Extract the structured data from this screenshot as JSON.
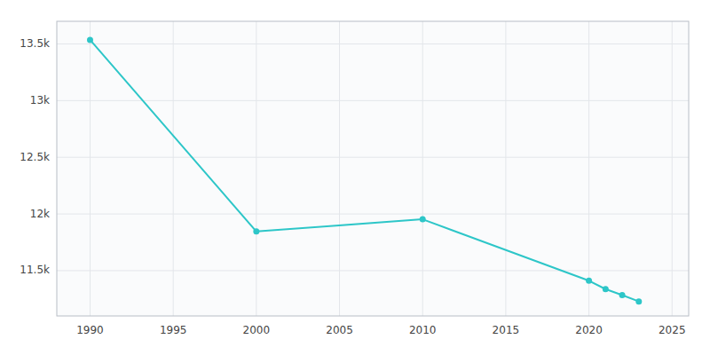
{
  "chart_data": {
    "type": "line",
    "x": [
      1990,
      2000,
      2010,
      2020,
      2021,
      2022,
      2023
    ],
    "values": [
      13536,
      11845,
      11953,
      11411,
      11337,
      11284,
      11228
    ],
    "color": "#2dc6c8",
    "marker": "circle",
    "xlim": [
      1988,
      2026
    ],
    "ylim": [
      11100,
      13700
    ],
    "xticks": [
      1990,
      1995,
      2000,
      2005,
      2010,
      2015,
      2020,
      2025
    ],
    "yticks": [
      {
        "value": 11500,
        "label": "11.5k"
      },
      {
        "value": 12000,
        "label": "12k"
      },
      {
        "value": 12500,
        "label": "12.5k"
      },
      {
        "value": 13000,
        "label": "13k"
      },
      {
        "value": 13500,
        "label": "13.5k"
      }
    ],
    "grid": true
  }
}
